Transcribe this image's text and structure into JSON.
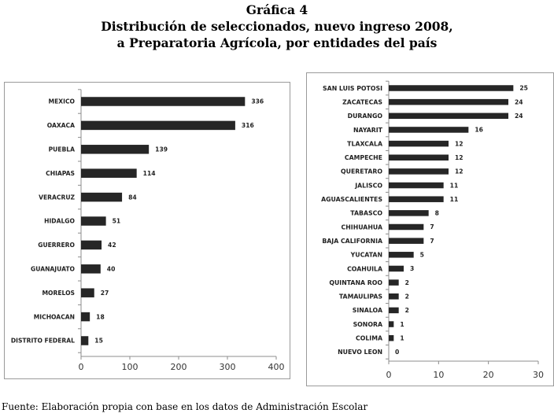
{
  "title": {
    "line1": "Gráfica 4",
    "line2": "Distribución de seleccionados, nuevo ingreso 2008,",
    "line3": "a Preparatoria Agrícola, por entidades del país"
  },
  "source": "Fuente: Elaboración propia con base en los datos de Administración Escolar",
  "chart_data": [
    {
      "type": "bar",
      "orientation": "horizontal",
      "categories": [
        "MEXICO",
        "OAXACA",
        "PUEBLA",
        "CHIAPAS",
        "VERACRUZ",
        "HIDALGO",
        "GUERRERO",
        "GUANAJUATO",
        "MORELOS",
        "MICHOACAN",
        "DISTRITO FEDERAL"
      ],
      "values": [
        336,
        316,
        139,
        114,
        84,
        51,
        42,
        40,
        27,
        18,
        15
      ],
      "xlim": [
        0,
        400
      ],
      "xticks": [
        0,
        100,
        200,
        300,
        400
      ],
      "grid": false,
      "bar_color": "#262626"
    },
    {
      "type": "bar",
      "orientation": "horizontal",
      "categories": [
        "SAN LUIS POTOSI",
        "ZACATECAS",
        "DURANGO",
        "NAYARIT",
        "TLAXCALA",
        "CAMPECHE",
        "QUERETARO",
        "JALISCO",
        "AGUASCALIENTES",
        "TABASCO",
        "CHIHUAHUA",
        "BAJA CALIFORNIA",
        "YUCATAN",
        "COAHUILA",
        "QUINTANA ROO",
        "TAMAULIPAS",
        "SINALOA",
        "SONORA",
        "COLIMA",
        "NUEVO LEON"
      ],
      "values": [
        25,
        24,
        24,
        16,
        12,
        12,
        12,
        11,
        11,
        8,
        7,
        7,
        5,
        3,
        2,
        2,
        2,
        1,
        1,
        0
      ],
      "xlim": [
        0,
        30
      ],
      "xticks": [
        0,
        10,
        20,
        30
      ],
      "grid": false,
      "bar_color": "#262626"
    }
  ]
}
